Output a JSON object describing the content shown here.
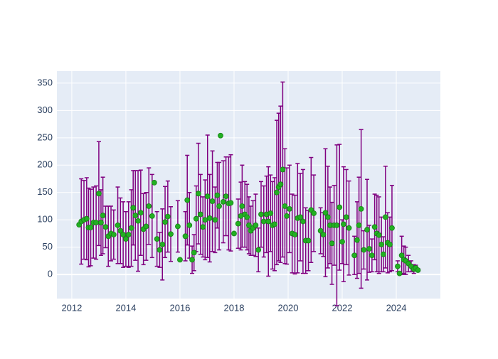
{
  "chart_data": {
    "type": "scatter",
    "x": [
      2012.27,
      2012.35,
      2012.45,
      2012.55,
      2012.62,
      2012.7,
      2012.8,
      2012.9,
      2013.0,
      2013.08,
      2013.15,
      2013.25,
      2013.35,
      2013.45,
      2013.55,
      2013.7,
      2013.8,
      2013.9,
      2014.0,
      2014.1,
      2014.2,
      2014.27,
      2014.35,
      2014.45,
      2014.55,
      2014.65,
      2014.75,
      2014.85,
      2014.97,
      2015.05,
      2015.15,
      2015.25,
      2015.35,
      2015.45,
      2015.55,
      2015.66,
      2015.92,
      2016.0,
      2016.2,
      2016.27,
      2016.35,
      2016.45,
      2016.52,
      2016.6,
      2016.68,
      2016.76,
      2016.85,
      2016.93,
      2017.02,
      2017.1,
      2017.2,
      2017.3,
      2017.38,
      2017.45,
      2017.5,
      2017.6,
      2017.7,
      2017.8,
      2017.88,
      2018.0,
      2018.15,
      2018.25,
      2018.3,
      2018.4,
      2018.48,
      2018.55,
      2018.62,
      2018.7,
      2018.8,
      2018.9,
      2019.0,
      2019.1,
      2019.2,
      2019.27,
      2019.35,
      2019.42,
      2019.5,
      2019.58,
      2019.65,
      2019.72,
      2019.8,
      2019.88,
      2019.95,
      2020.05,
      2020.15,
      2020.25,
      2020.35,
      2020.45,
      2020.55,
      2020.65,
      2020.75,
      2020.85,
      2020.95,
      2021.2,
      2021.3,
      2021.38,
      2021.47,
      2021.55,
      2021.62,
      2021.7,
      2021.8,
      2021.9,
      2022.0,
      2022.05,
      2022.15,
      2022.25,
      2022.45,
      2022.55,
      2022.62,
      2022.7,
      2022.8,
      2022.92,
      2023.0,
      2023.1,
      2023.2,
      2023.28,
      2023.36,
      2023.45,
      2023.52,
      2023.6,
      2023.68,
      2023.76,
      2023.84,
      2024.05,
      2024.12,
      2024.2,
      2024.28,
      2024.35,
      2024.45,
      2024.55,
      2024.65,
      2024.72,
      2024.8
    ],
    "values": [
      91,
      97,
      100,
      102,
      86,
      86,
      95,
      95,
      148,
      95,
      108,
      87,
      70,
      75,
      73,
      90,
      80,
      73,
      65,
      73,
      85,
      122,
      108,
      98,
      113,
      83,
      88,
      125,
      107,
      168,
      65,
      45,
      55,
      96,
      106,
      74,
      88,
      27,
      70,
      136,
      90,
      27,
      40,
      102,
      148,
      110,
      87,
      100,
      143,
      103,
      134,
      100,
      145,
      125,
      254,
      133,
      143,
      130,
      131,
      75,
      93,
      107,
      125,
      110,
      105,
      90,
      80,
      85,
      90,
      45,
      110,
      97,
      110,
      97,
      112,
      90,
      92,
      150,
      160,
      165,
      192,
      125,
      107,
      120,
      75,
      73,
      103,
      105,
      97,
      62,
      62,
      118,
      112,
      80,
      73,
      113,
      105,
      90,
      57,
      90,
      90,
      123,
      60,
      92,
      105,
      85,
      35,
      63,
      90,
      120,
      45,
      82,
      47,
      35,
      87,
      75,
      72,
      55,
      37,
      105,
      58,
      55,
      85,
      15,
      2,
      35,
      27,
      25,
      20,
      15,
      10,
      12,
      8
    ],
    "errors": [
      0,
      78,
      72,
      75,
      72,
      70,
      65,
      67,
      95,
      60,
      70,
      38,
      55,
      50,
      45,
      70,
      60,
      60,
      50,
      60,
      70,
      68,
      82,
      92,
      78,
      65,
      62,
      70,
      76,
      0,
      50,
      32,
      65,
      65,
      65,
      50,
      47,
      0,
      45,
      82,
      60,
      25,
      33,
      60,
      92,
      73,
      55,
      73,
      112,
      80,
      92,
      60,
      60,
      80,
      0,
      75,
      72,
      85,
      88,
      0,
      45,
      62,
      75,
      60,
      60,
      52,
      45,
      50,
      57,
      40,
      60,
      65,
      70,
      100,
      70,
      80,
      85,
      132,
      135,
      143,
      160,
      105,
      88,
      80,
      72,
      72,
      100,
      80,
      95,
      60,
      55,
      96,
      70,
      42,
      40,
      117,
      93,
      70,
      75,
      73,
      147,
      115,
      40,
      105,
      87,
      86,
      35,
      70,
      88,
      145,
      35,
      92,
      43,
      30,
      60,
      70,
      70,
      50,
      32,
      93,
      55,
      50,
      78,
      10,
      0,
      35,
      25,
      25,
      15,
      10,
      8,
      5,
      3
    ],
    "bar_color": "#800080",
    "color": "#22b022",
    "xlim": [
      2011.45,
      2025.63
    ],
    "ylim": [
      -44,
      372
    ],
    "xticks": [
      2012,
      2014,
      2016,
      2018,
      2020,
      2022,
      2024
    ],
    "yticks": [
      0,
      50,
      100,
      150,
      200,
      250,
      300,
      350
    ],
    "grid": true
  }
}
